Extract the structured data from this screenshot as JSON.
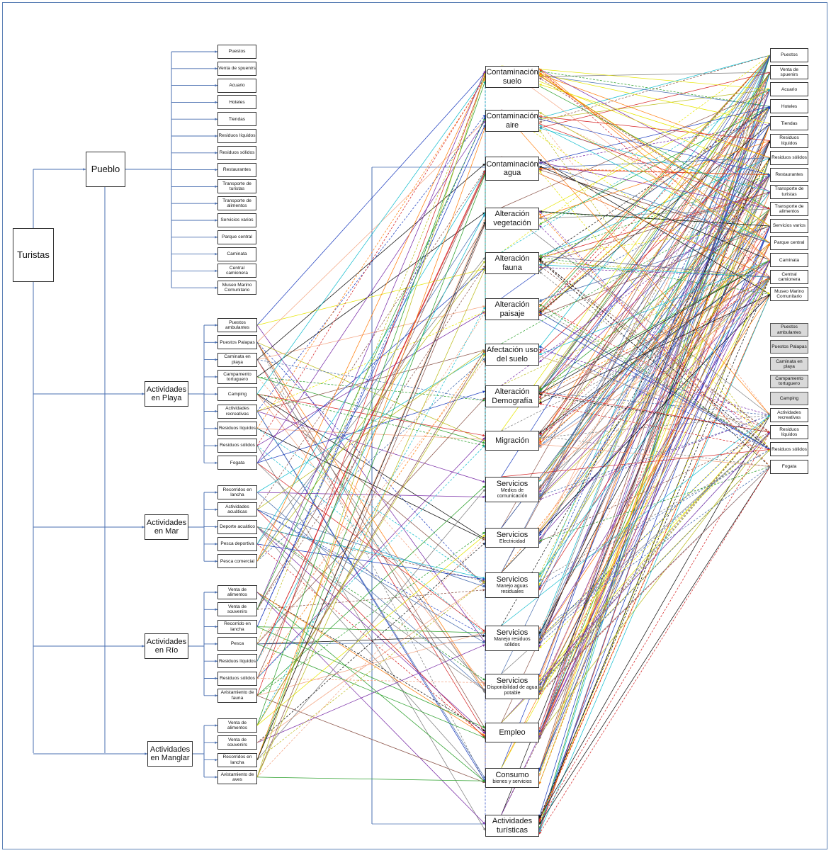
{
  "root": "Turistas",
  "groups": [
    {
      "id": "pueblo",
      "label": "Pueblo",
      "items": [
        "Puestos",
        "Venta de spuenirs",
        "Acuario",
        "Hoteles",
        "Tiendas",
        "Residuos líquidos",
        "Residuos sólidos",
        "Restaurantes",
        "Transporte de turistas",
        "Transporte de alimentos",
        "Servicios varios",
        "Parque central",
        "Caminata",
        "Central camionera",
        "Museo Marino Comunitario"
      ]
    },
    {
      "id": "playa",
      "label": "Actividades en Playa",
      "items": [
        "Puestos ambulantes",
        "Puestos Palapas",
        "Caminata en playa",
        "Campamento tortuguero",
        "Camping",
        "Actividades recreativas",
        "Residuos líquidos",
        "Residuos sólidos",
        "Fogata"
      ]
    },
    {
      "id": "mar",
      "label": "Actividades en Mar",
      "items": [
        "Recorridos en lancha",
        "Actividades acuáticas",
        "Deporte acuático",
        "Pesca deportiva",
        "Pesca comercial"
      ]
    },
    {
      "id": "rio",
      "label": "Actividades en Río",
      "items": [
        "Venta de alimentos",
        "Venta de souvenirs",
        "Recorrido en lancha",
        "Pesca",
        "Residuos líquidos",
        "Residuos sólidos",
        "Avistamiento de fauna"
      ]
    },
    {
      "id": "manglar",
      "label": "Actividades en Manglar",
      "items": [
        "Venta de alimentos",
        "Venta de souvenirs",
        "Recorridos en lancha",
        "Avistamiento de aves"
      ]
    }
  ],
  "impacts": [
    {
      "title": "Contaminación suelo",
      "sub": ""
    },
    {
      "title": "Contaminación aire",
      "sub": ""
    },
    {
      "title": "Contaminación agua",
      "sub": ""
    },
    {
      "title": "Alteración vegetación",
      "sub": ""
    },
    {
      "title": "Alteración fauna",
      "sub": ""
    },
    {
      "title": "Alteración paisaje",
      "sub": ""
    },
    {
      "title": "Afectación uso del suelo",
      "sub": ""
    },
    {
      "title": "Alteración Demografía",
      "sub": ""
    },
    {
      "title": "Migración",
      "sub": ""
    },
    {
      "title": "Servicios",
      "sub": "Medios de comunicación"
    },
    {
      "title": "Servicios",
      "sub": "Electricidad"
    },
    {
      "title": "Servicios",
      "sub": "Manejo aguas residuales"
    },
    {
      "title": "Servicios",
      "sub": "Manejo residuos sólidos"
    },
    {
      "title": "Servicios",
      "sub": "Disponibilidad de agua potable"
    },
    {
      "title": "Empleo",
      "sub": ""
    },
    {
      "title": "Consumo",
      "sub": "bienes y servicios"
    },
    {
      "title": "Actividades turísticas",
      "sub": ""
    }
  ],
  "right_column": {
    "white": [
      "Puestos",
      "Venta de spuenirs",
      "Acuario",
      "Hoteles",
      "Tiendas",
      "Residuos líquidos",
      "Residuos sólidos",
      "Restaurantes",
      "Transporte de turistas",
      "Transporte de alimentos",
      "Servicios varios",
      "Parque central",
      "Caminata",
      "Central camionera",
      "Museo Marino Comunitario"
    ],
    "gray": [
      "Puestos ambulantes",
      "Puestos Palapas",
      "Caminata en playa",
      "Campamento tortuguero",
      "Camping"
    ],
    "white2": [
      "Actividades recreativas",
      "Residuos líquidos",
      "Residuos sólidos",
      "Fogata"
    ]
  },
  "colors": {
    "tree_line": "#4a6fb0",
    "link_colors": [
      "#4a6fb0",
      "#d62728",
      "#2ca02c",
      "#7b2fa8",
      "#111111",
      "#e6e600",
      "#17becf",
      "#7f7f7f",
      "#bcbd22",
      "#ff7f0e",
      "#1f3fbf",
      "#8c564b",
      "#f4a582"
    ]
  }
}
